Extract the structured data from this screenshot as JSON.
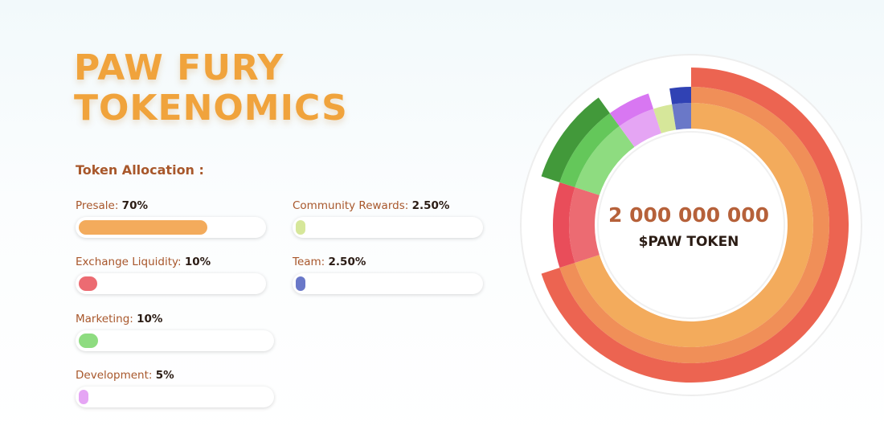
{
  "header": {
    "title_line1": "PAW FURY",
    "title_line2": "TOKENOMICS",
    "allocation_heading": "Token Allocation :"
  },
  "allocations": [
    {
      "name": "Presale:",
      "pct_label": "70%",
      "value": 70,
      "color": "#f3ab5c"
    },
    {
      "name": "Exchange Liquidity:",
      "pct_label": "10%",
      "value": 10,
      "color": "#ec6b72"
    },
    {
      "name": "Marketing:",
      "pct_label": "10%",
      "value": 10,
      "color": "#8edc80"
    },
    {
      "name": "Development:",
      "pct_label": "5%",
      "value": 5,
      "color": "#e5a5f4"
    },
    {
      "name": "Community Rewards:",
      "pct_label": "2.50%",
      "value": 2.5,
      "color": "#d6e79a"
    },
    {
      "name": "Team:",
      "pct_label": "2.50%",
      "value": 2.5,
      "color": "#6a78c8"
    }
  ],
  "total_supply": {
    "value": "2 000 000 000",
    "caption": "$PAW TOKEN"
  },
  "chart_data": {
    "type": "pie",
    "variant": "multi-ring donut",
    "title": "",
    "categories": [
      "Presale",
      "Exchange Liquidity",
      "Marketing",
      "Development",
      "Community Rewards",
      "Team"
    ],
    "values": [
      70,
      10,
      10,
      5,
      2.5,
      2.5
    ],
    "unit": "%",
    "colors": {
      "Presale": [
        "#f3ab5c",
        "#f08f58",
        "#ec6451"
      ],
      "Exchange Liquidity": [
        "#ec6b72",
        "#e94d5a"
      ],
      "Marketing": [
        "#8edc80",
        "#64c75a",
        "#42993a"
      ],
      "Development": [
        "#e5a5f4",
        "#d877f2"
      ],
      "Community Rewards": [
        "#d6e79a"
      ],
      "Team": [
        "#6a78c8",
        "#3042b4"
      ]
    }
  }
}
